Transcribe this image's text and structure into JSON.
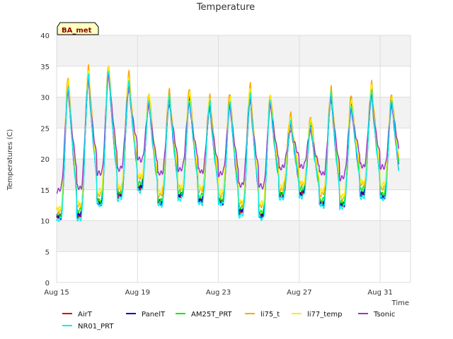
{
  "chart_data": {
    "type": "line",
    "title": "Temperature",
    "xlabel": "Time",
    "ylabel": "Temperatures (C)",
    "badge": "BA_met",
    "ylim": [
      0,
      40
    ],
    "yticks": [
      0,
      5,
      10,
      15,
      20,
      25,
      30,
      35,
      40
    ],
    "xlim": [
      "2023-08-15",
      "2023-09-01T12:00"
    ],
    "xticks": [
      {
        "date": "2023-08-15",
        "label": "Aug 15"
      },
      {
        "date": "2023-08-19",
        "label": "Aug 19"
      },
      {
        "date": "2023-08-23",
        "label": "Aug 23"
      },
      {
        "date": "2023-08-27",
        "label": "Aug 27"
      },
      {
        "date": "2023-08-31",
        "label": "Aug 31"
      }
    ],
    "grid": true,
    "legend_position": "bottom",
    "day_start": "2023-08-15",
    "daily_max": [
      33,
      34.5,
      35.3,
      33.5,
      30.5,
      31,
      31,
      30,
      30.5,
      31.5,
      30.5,
      27,
      26.5,
      31.5,
      30,
      32,
      30.5
    ],
    "daily_min": [
      10,
      10.5,
      12.5,
      13.5,
      15,
      12.5,
      13.5,
      13,
      12.5,
      11,
      10.5,
      13.5,
      14,
      12.5,
      12,
      14,
      13.5,
      14
    ],
    "series": [
      {
        "name": "AirT",
        "color": "#dd0000",
        "offset_max": -1.5,
        "offset_min": 0.5
      },
      {
        "name": "PanelT",
        "color": "#0000cc",
        "offset_max": -1.0,
        "offset_min": 0.5
      },
      {
        "name": "AM25T_PRT",
        "color": "#00ee00",
        "offset_max": -0.5,
        "offset_min": 1.0
      },
      {
        "name": "li75_t",
        "color": "#ffa500",
        "offset_max": 0.3,
        "offset_min": 1.8
      },
      {
        "name": "li77_temp",
        "color": "#ffee00",
        "offset_max": -0.3,
        "offset_min": 2.2
      },
      {
        "name": "Tsonic",
        "color": "#9933cc",
        "offset_max": -2.0,
        "offset_min": 5.0
      },
      {
        "name": "NR01_PRT",
        "color": "#00eeee",
        "offset_max": -1.0,
        "offset_min": 0.0
      }
    ]
  }
}
